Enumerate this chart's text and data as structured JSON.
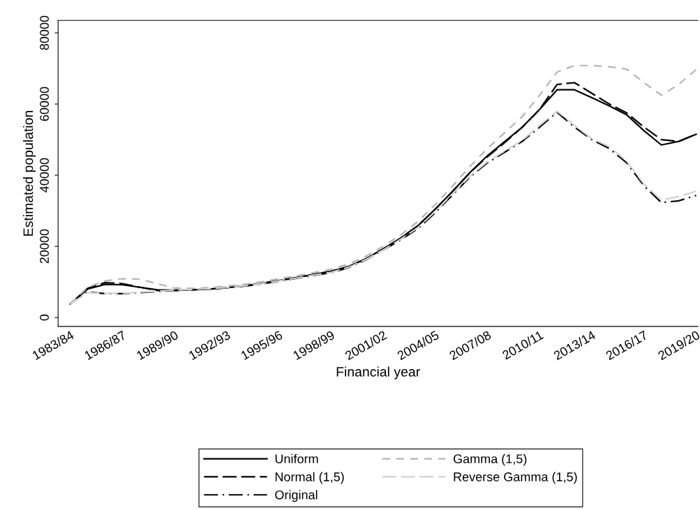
{
  "chart_data": {
    "type": "line",
    "xlabel": "Financial year",
    "ylabel": "Estimated population",
    "categories": [
      "1983/84",
      null,
      null,
      "1986/87",
      null,
      null,
      "1989/90",
      null,
      null,
      "1992/93",
      null,
      null,
      "1995/96",
      null,
      null,
      "1998/99",
      null,
      null,
      "2001/02",
      null,
      null,
      "2004/05",
      null,
      null,
      "2007/08",
      null,
      null,
      "2010/11",
      null,
      null,
      "2013/14",
      null,
      null,
      "2016/17",
      null,
      null,
      "2019/20"
    ],
    "ylim": [
      -2500,
      83500
    ],
    "yticks": [
      0,
      20000,
      40000,
      60000,
      80000
    ],
    "grid": false,
    "legend": "bottom",
    "marker": "none",
    "series": [
      {
        "name": "Uniform",
        "color": "#000000",
        "line_style": "solid",
        "values": [
          3800,
          8000,
          9300,
          9200,
          8500,
          7800,
          7700,
          7800,
          8000,
          8400,
          8900,
          9600,
          10400,
          11200,
          12100,
          13000,
          14300,
          16500,
          19300,
          22300,
          25800,
          30500,
          35500,
          40800,
          45500,
          49500,
          53500,
          58500,
          64000,
          64000,
          61800,
          59500,
          57000,
          52500,
          48500,
          49500,
          51500
        ]
      },
      {
        "name": "Normal (1,5)",
        "color": "#000000",
        "line_style": "longdash",
        "values": [
          3800,
          8200,
          9800,
          9500,
          8500,
          7600,
          7600,
          7800,
          8000,
          8400,
          8900,
          9600,
          10400,
          11200,
          12100,
          13000,
          14300,
          16500,
          19300,
          22300,
          25800,
          30500,
          35500,
          40800,
          45200,
          49200,
          53500,
          58500,
          65500,
          66000,
          63000,
          60000,
          57500,
          53500,
          50000,
          49500,
          51500
        ]
      },
      {
        "name": "Original",
        "color": "#000000",
        "line_style": "dashdot",
        "values": [
          3800,
          7200,
          6700,
          6700,
          7000,
          7300,
          7600,
          7800,
          8000,
          8300,
          8800,
          9400,
          10200,
          11000,
          11800,
          12600,
          14000,
          16200,
          19000,
          21800,
          25000,
          29500,
          34500,
          39500,
          43500,
          46500,
          49500,
          53500,
          57700,
          53500,
          50000,
          47500,
          43500,
          37000,
          32300,
          32800,
          34300
        ]
      },
      {
        "name": "Gamma (1,5)",
        "color": "#b4b4b4",
        "line_style": "dashed",
        "values": [
          3800,
          8500,
          10300,
          10900,
          10800,
          9500,
          8300,
          8200,
          8400,
          8800,
          9300,
          10000,
          10900,
          11700,
          12600,
          13600,
          15000,
          17200,
          20000,
          23200,
          27000,
          31800,
          37000,
          42500,
          47500,
          52000,
          56500,
          62500,
          69000,
          70800,
          70800,
          70500,
          69800,
          66000,
          62500,
          65500,
          69700
        ]
      },
      {
        "name": "Reverse Gamma (1,5)",
        "color": "#d2d2d2",
        "line_style": "longdash",
        "values": [
          3800,
          7000,
          6800,
          6800,
          7100,
          7400,
          7700,
          7900,
          8100,
          8400,
          8900,
          9500,
          10300,
          11100,
          11900,
          12700,
          14100,
          16300,
          19000,
          22000,
          25300,
          29800,
          34800,
          39800,
          43800,
          46800,
          49800,
          54000,
          58000,
          54000,
          50300,
          48000,
          44000,
          37500,
          33000,
          34000,
          35500
        ]
      }
    ]
  }
}
